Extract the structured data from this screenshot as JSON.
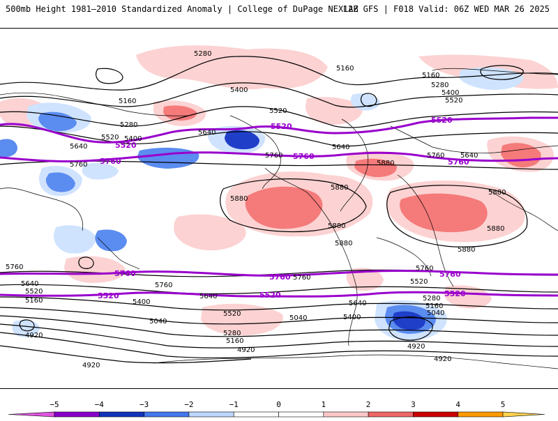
{
  "header": {
    "title": "500mb Height 1981–2010 Standardized Anomaly | College of DuPage NEXLAB",
    "run_info": "12Z GFS | F018 Valid: 06Z WED MAR 26 2025"
  },
  "map": {
    "contour_labels_black": [
      "5280",
      "5160",
      "5400",
      "5520",
      "5640",
      "5760",
      "5880",
      "5040",
      "4920"
    ],
    "contour_labels_purple": [
      "5520",
      "5760"
    ],
    "colors": {
      "contour_black": "#000000",
      "contour_purple": "#9900cc",
      "anomaly_pos_1": "#fcd2d2",
      "anomaly_pos_2": "#f57a7a",
      "anomaly_pos_3": "#d41414",
      "anomaly_neg_1": "#cfe3ff",
      "anomaly_neg_2": "#5b8cf0",
      "anomaly_neg_3": "#1f3fc9",
      "coastline": "#000000"
    }
  },
  "colorbar": {
    "ticks": [
      "−5",
      "−4",
      "−3",
      "−2",
      "−1",
      "0",
      "1",
      "2",
      "3",
      "4",
      "5"
    ],
    "colors": [
      "#dd55dd",
      "#8800cc",
      "#1133bb",
      "#4477ee",
      "#bdd7ff",
      "#ffffff",
      "#ffffff",
      "#fcc7c7",
      "#ee6666",
      "#cc0000",
      "#ff9900",
      "#ffd24d"
    ]
  }
}
